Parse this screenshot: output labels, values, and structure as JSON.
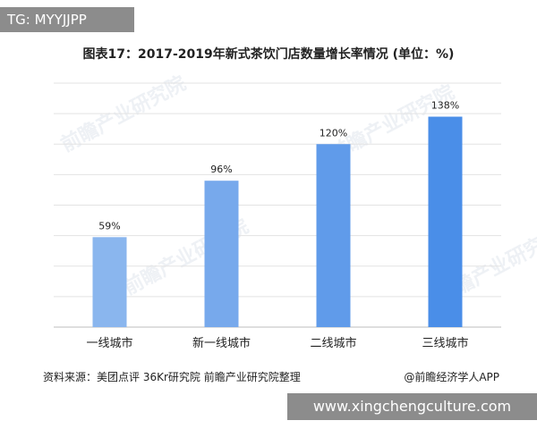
{
  "badge_top": "TG: MYYJJPP",
  "badge_bottom": "www.xingchengculture.com",
  "source_note": "资料来源：美团点评 36Kr研究院 前瞻产业研究院整理",
  "credit_note": "@前瞻经济学人APP",
  "watermark_text": "前瞻产业研究院",
  "chart_data": {
    "type": "bar",
    "title": "图表17：2017-2019年新式茶饮门店数量增长率情况 (单位：%)",
    "categories": [
      "一线城市",
      "新一线城市",
      "二线城市",
      "三线城市"
    ],
    "values": [
      59,
      96,
      120,
      138
    ],
    "value_labels": [
      "59%",
      "96%",
      "120%",
      "138%"
    ],
    "ylim": [
      0,
      160
    ],
    "grid": true,
    "bar_colors": [
      "#8ab6ee",
      "#77a9ec",
      "#609bea",
      "#4a8ee8"
    ],
    "grid_color": "#e3e3e3"
  }
}
